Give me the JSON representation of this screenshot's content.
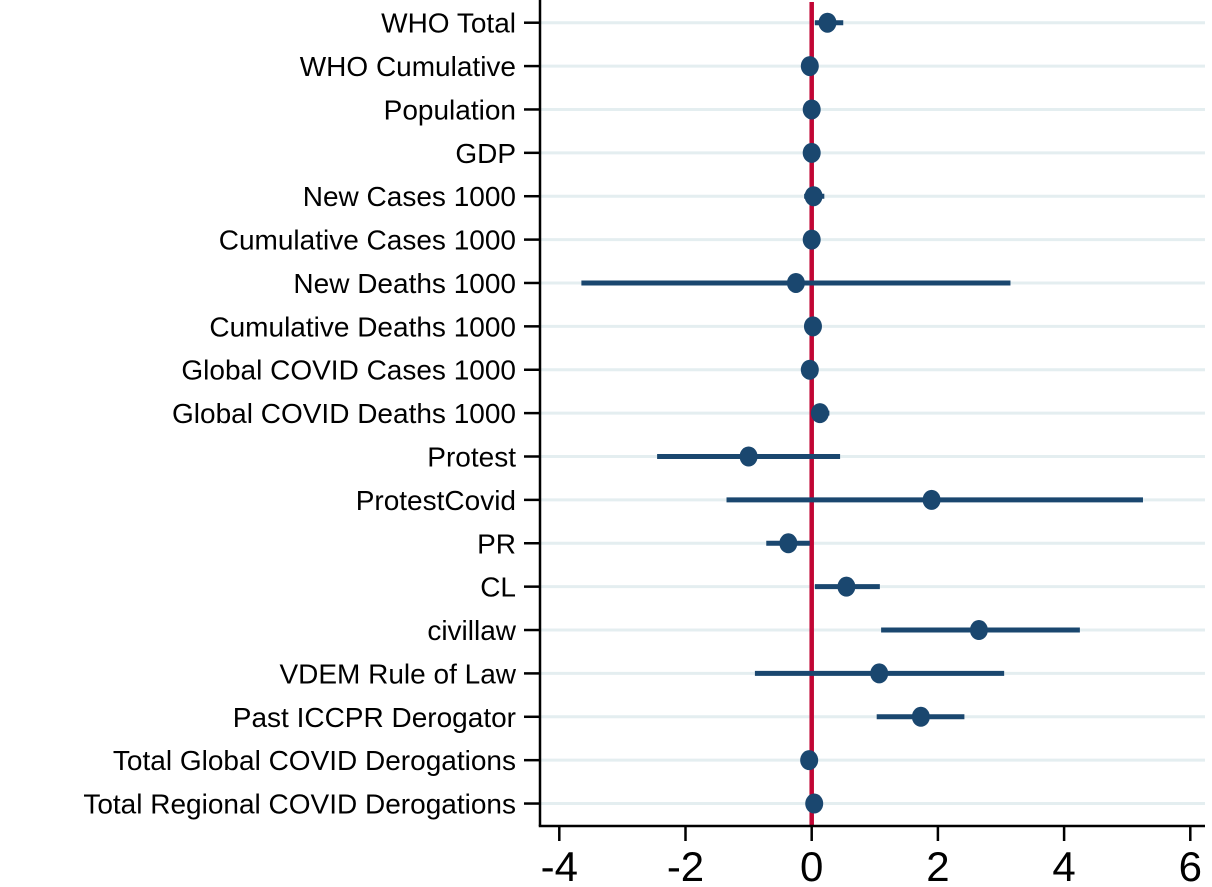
{
  "chart_data": {
    "type": "scatter",
    "subtype": "coefficient-forest-plot",
    "title": "",
    "xlabel": "",
    "ylabel": "",
    "x_ticks": [
      -4,
      -2,
      0,
      2,
      4,
      6
    ],
    "xlim": [
      -4.31,
      6.23
    ],
    "reference_line_x": 0,
    "grid": true,
    "legend": null,
    "points": [
      {
        "label": "WHO Total",
        "estimate": 0.25,
        "ci_low": 0.05,
        "ci_high": 0.5
      },
      {
        "label": "WHO Cumulative",
        "estimate": -0.03,
        "ci_low": -0.1,
        "ci_high": 0.05
      },
      {
        "label": "Population",
        "estimate": 0.0,
        "ci_low": -0.08,
        "ci_high": 0.08
      },
      {
        "label": "GDP",
        "estimate": 0.0,
        "ci_low": -0.08,
        "ci_high": 0.08
      },
      {
        "label": "New Cases 1000",
        "estimate": 0.03,
        "ci_low": -0.12,
        "ci_high": 0.2
      },
      {
        "label": "Cumulative Cases 1000",
        "estimate": 0.0,
        "ci_low": -0.08,
        "ci_high": 0.08
      },
      {
        "label": "New Deaths 1000",
        "estimate": -0.25,
        "ci_low": -3.65,
        "ci_high": 3.15
      },
      {
        "label": "Cumulative Deaths 1000",
        "estimate": 0.02,
        "ci_low": -0.08,
        "ci_high": 0.15
      },
      {
        "label": "Global COVID Cases 1000",
        "estimate": -0.03,
        "ci_low": -0.1,
        "ci_high": 0.05
      },
      {
        "label": "Global COVID Deaths 1000",
        "estimate": 0.13,
        "ci_low": 0.0,
        "ci_high": 0.28
      },
      {
        "label": "Protest",
        "estimate": -1.0,
        "ci_low": -2.45,
        "ci_high": 0.45
      },
      {
        "label": "ProtestCovid",
        "estimate": 1.9,
        "ci_low": -1.35,
        "ci_high": 5.25
      },
      {
        "label": "PR",
        "estimate": -0.37,
        "ci_low": -0.72,
        "ci_high": -0.03
      },
      {
        "label": "CL",
        "estimate": 0.55,
        "ci_low": 0.05,
        "ci_high": 1.08
      },
      {
        "label": "civillaw",
        "estimate": 2.65,
        "ci_low": 1.1,
        "ci_high": 4.25
      },
      {
        "label": "VDEM Rule of Law",
        "estimate": 1.07,
        "ci_low": -0.9,
        "ci_high": 3.05
      },
      {
        "label": "Past ICCPR Derogator",
        "estimate": 1.73,
        "ci_low": 1.03,
        "ci_high": 2.42
      },
      {
        "label": "Total Global COVID Derogations",
        "estimate": -0.04,
        "ci_low": -0.12,
        "ci_high": 0.06
      },
      {
        "label": "Total Regional COVID Derogations",
        "estimate": 0.04,
        "ci_low": -0.05,
        "ci_high": 0.14
      }
    ],
    "colors": {
      "marker": "#1a476f",
      "ci_line": "#1a476f",
      "reference_line": "#c10534",
      "gridline": "#e4eef0",
      "axis": "#000000",
      "background": "#ffffff"
    }
  }
}
